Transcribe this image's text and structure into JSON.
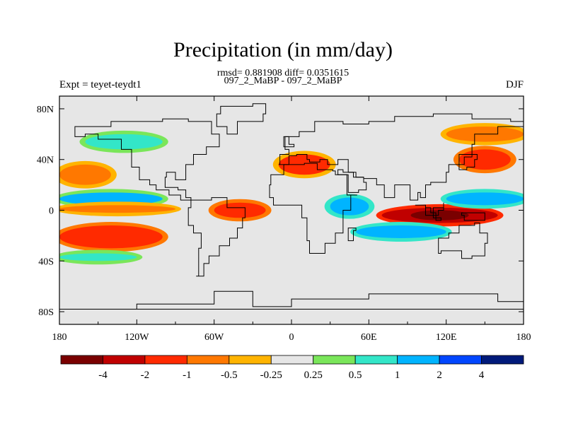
{
  "chart_data": {
    "type": "heatmap",
    "title": "Precipitation (in mm/day)",
    "stats_line": "rmsd= 0.881908 diff= 0.0351615",
    "case_line": "097_2_MaBP - 097_2_MaBP",
    "left_label": "Expt = teyet-teydt1",
    "right_label": "DJF",
    "x_ticks": [
      "180",
      "120W",
      "60W",
      "0",
      "60E",
      "120E",
      "180"
    ],
    "y_ticks": [
      "80N",
      "40N",
      "0",
      "40S",
      "80S"
    ],
    "xlim": [
      -180,
      180
    ],
    "ylim": [
      -90,
      90
    ],
    "colorbar": {
      "colors": [
        "#7a0000",
        "#c00000",
        "#ff2a00",
        "#ff7800",
        "#ffb400",
        "#e6e6e6",
        "#7ae65a",
        "#33e6c8",
        "#00b4ff",
        "#0046ff",
        "#001a7a"
      ],
      "labels": [
        "-4",
        "-2",
        "-1",
        "-0.5",
        "-0.25",
        "0.25",
        "0.5",
        "1",
        "2",
        "4"
      ]
    },
    "anomaly_bands": [
      {
        "lon": [
          -180,
          -100
        ],
        "lat": [
          4,
          14
        ],
        "value": 1.2
      },
      {
        "lon": [
          -180,
          -90
        ],
        "lat": [
          -2,
          4
        ],
        "value": -0.6
      },
      {
        "lon": [
          -180,
          -100
        ],
        "lat": [
          -30,
          -12
        ],
        "value": -1.5
      },
      {
        "lon": [
          -180,
          -140
        ],
        "lat": [
          20,
          36
        ],
        "value": -0.8
      },
      {
        "lon": [
          -160,
          -100
        ],
        "lat": [
          48,
          60
        ],
        "value": 0.6
      },
      {
        "lon": [
          -60,
          -20
        ],
        "lat": [
          -6,
          6
        ],
        "value": -1.8
      },
      {
        "lon": [
          -10,
          30
        ],
        "lat": [
          28,
          44
        ],
        "value": -1.2
      },
      {
        "lon": [
          30,
          60
        ],
        "lat": [
          -4,
          10
        ],
        "value": 1.5
      },
      {
        "lon": [
          70,
          160
        ],
        "lat": [
          -10,
          2
        ],
        "value": -3.5
      },
      {
        "lon": [
          50,
          120
        ],
        "lat": [
          -22,
          -12
        ],
        "value": 1.5
      },
      {
        "lon": [
          120,
          180
        ],
        "lat": [
          4,
          14
        ],
        "value": 1.8
      },
      {
        "lon": [
          130,
          170
        ],
        "lat": [
          32,
          48
        ],
        "value": -1.6
      },
      {
        "lon": [
          120,
          180
        ],
        "lat": [
          54,
          66
        ],
        "value": -0.6
      },
      {
        "lon": [
          -180,
          -120
        ],
        "lat": [
          -40,
          -34
        ],
        "value": 0.6
      }
    ]
  }
}
